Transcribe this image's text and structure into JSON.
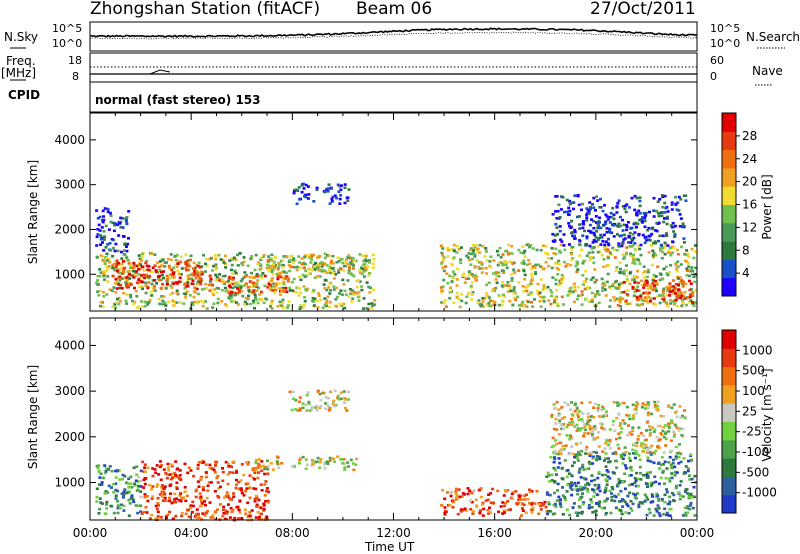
{
  "header": {
    "station": "Zhongshan Station (fitACF)",
    "beam": "Beam 06",
    "date": "27/Oct/2011"
  },
  "status_panel": {
    "nsky_label": "N.Sky",
    "nsearch_label": "N.Search",
    "freq_label": "Freq.",
    "freq_unit": "[MHz]",
    "nave_label": "Nave",
    "cpid_label": "CPID",
    "cpid_value": "normal (fast stereo) 153",
    "noise_ticks_left": [
      "10^5",
      "10^0"
    ],
    "noise_ticks_right": [
      "10^5",
      "10^0"
    ],
    "freq_ticks": [
      "18",
      "8"
    ],
    "nave_ticks": [
      "60",
      "0"
    ]
  },
  "chart_data": [
    {
      "type": "heatmap",
      "name": "power",
      "ylabel": "Slant Range [km]",
      "ylim": [
        180,
        4600
      ],
      "yticks": [
        "1000",
        "2000",
        "3000",
        "4000"
      ],
      "xlim": [
        0,
        24
      ],
      "colorbar": {
        "label": "Power [dB]",
        "ticks": [
          "28",
          "24",
          "20",
          "16",
          "12",
          "8",
          "4"
        ],
        "colors": [
          "#1f00ff",
          "#1750c8",
          "#2e7a3c",
          "#4a9a5a",
          "#70c050",
          "#f0dc30",
          "#f0a020",
          "#f07010",
          "#e83a10",
          "#e00000"
        ]
      },
      "echo_regions": [
        {
          "t0": 0.2,
          "t1": 11.2,
          "r0": 260,
          "r1": 1500,
          "level": 0.45
        },
        {
          "t0": 0.8,
          "t1": 4.4,
          "r0": 700,
          "r1": 1350,
          "level": 0.9
        },
        {
          "t0": 4.5,
          "t1": 7.8,
          "r0": 600,
          "r1": 1000,
          "level": 0.8
        },
        {
          "t0": 6.8,
          "t1": 10.5,
          "r0": 1100,
          "r1": 1450,
          "level": 0.55
        },
        {
          "t0": 0.2,
          "t1": 1.5,
          "r0": 1500,
          "r1": 2500,
          "level": 0.15
        },
        {
          "t0": 8.0,
          "t1": 10.2,
          "r0": 2600,
          "r1": 3050,
          "level": 0.1
        },
        {
          "t0": 13.8,
          "t1": 23.9,
          "r0": 300,
          "r1": 1700,
          "level": 0.5
        },
        {
          "t0": 18.2,
          "t1": 23.5,
          "r0": 1650,
          "r1": 2800,
          "level": 0.1
        },
        {
          "t0": 21.0,
          "t1": 23.8,
          "r0": 400,
          "r1": 900,
          "level": 0.85
        }
      ]
    },
    {
      "type": "heatmap",
      "name": "velocity",
      "ylabel": "Slant Range [km]",
      "ylim": [
        180,
        4600
      ],
      "yticks": [
        "1000",
        "2000",
        "3000",
        "4000"
      ],
      "xlabel": "Time UT",
      "xticks": [
        "00:00",
        "04:00",
        "08:00",
        "12:00",
        "16:00",
        "20:00",
        "00:00"
      ],
      "xlim": [
        0,
        24
      ],
      "colorbar": {
        "label": "Velocity [m s⁻¹]",
        "ticks": [
          "1000",
          "500",
          "100",
          "25",
          "-25",
          "-100",
          "-500",
          "-1000"
        ],
        "colors": [
          "#1f3cc8",
          "#2e5fa0",
          "#2e7a3c",
          "#4ea24a",
          "#70d040",
          "#c8c8c0",
          "#f0a020",
          "#f07010",
          "#e83a10",
          "#e00000"
        ]
      },
      "echo_regions": [
        {
          "t0": 0.2,
          "t1": 2.0,
          "r0": 300,
          "r1": 1400,
          "level": 0.3
        },
        {
          "t0": 2.0,
          "t1": 7.0,
          "r0": 200,
          "r1": 1500,
          "level": 0.85
        },
        {
          "t0": 6.5,
          "t1": 10.5,
          "r0": 1300,
          "r1": 1600,
          "level": 0.55
        },
        {
          "t0": 7.8,
          "t1": 10.2,
          "r0": 2600,
          "r1": 3050,
          "level": 0.55
        },
        {
          "t0": 13.8,
          "t1": 18.0,
          "r0": 300,
          "r1": 900,
          "level": 0.8
        },
        {
          "t0": 18.0,
          "t1": 23.9,
          "r0": 300,
          "r1": 1700,
          "level": 0.25
        },
        {
          "t0": 18.2,
          "t1": 23.5,
          "r0": 1650,
          "r1": 2800,
          "level": 0.55
        }
      ]
    }
  ]
}
